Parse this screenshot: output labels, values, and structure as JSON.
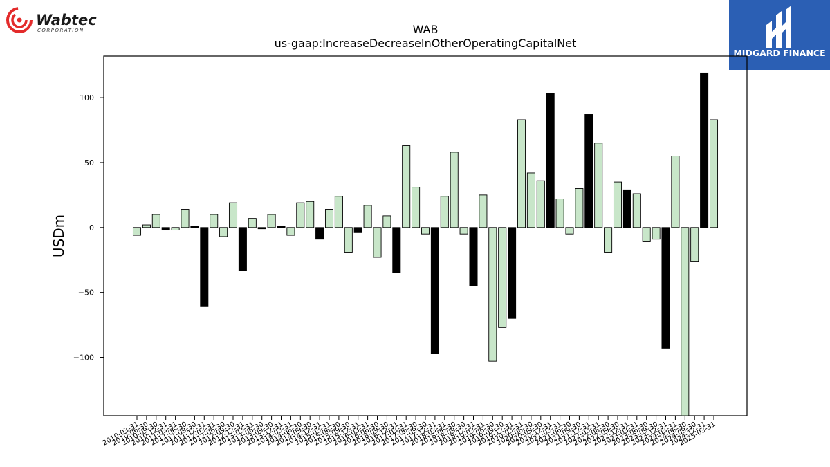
{
  "logos": {
    "company": {
      "name": "Wabtec",
      "sub": "CORPORATION",
      "accent": "#e32b2b"
    },
    "publisher": {
      "name": "MIDGARD FINANCE",
      "color": "#2b5fb4"
    }
  },
  "chart_data": {
    "type": "bar",
    "title": "WAB",
    "subtitle": "us-gaap:IncreaseDecreaseInOtherOperatingCapitalNet",
    "ylabel": "USDm",
    "xlabel": "",
    "ylim": [
      -145,
      132
    ],
    "yticks": [
      -100,
      -50,
      0,
      50,
      100
    ],
    "grid": false,
    "colors": {
      "default": "#c8e6c9",
      "highlight": "#000000",
      "edge": "#000000"
    },
    "categories": [
      "2010-03-31",
      "2010-06-30",
      "2010-09-30",
      "2010-12-31",
      "2011-03-31",
      "2011-06-30",
      "2011-09-30",
      "2011-12-31",
      "2012-03-31",
      "2012-06-30",
      "2012-09-30",
      "2012-12-31",
      "2013-03-31",
      "2013-06-30",
      "2013-09-30",
      "2013-12-31",
      "2014-03-31",
      "2014-06-30",
      "2014-09-30",
      "2014-12-31",
      "2015-03-31",
      "2015-06-30",
      "2015-09-30",
      "2015-12-31",
      "2016-03-31",
      "2016-06-30",
      "2016-09-30",
      "2016-12-31",
      "2017-03-31",
      "2017-06-30",
      "2017-09-30",
      "2017-12-31",
      "2018-03-31",
      "2018-06-30",
      "2018-09-30",
      "2018-12-31",
      "2019-03-31",
      "2019-06-30",
      "2019-09-30",
      "2019-12-31",
      "2020-03-31",
      "2020-06-30",
      "2020-09-30",
      "2020-12-31",
      "2021-03-31",
      "2021-06-30",
      "2021-09-30",
      "2021-12-31",
      "2022-03-31",
      "2022-06-30",
      "2022-09-30",
      "2022-12-31",
      "2023-03-31",
      "2023-06-30",
      "2023-09-30",
      "2023-12-31",
      "2024-03-31",
      "2024-06-30",
      "2024-09-30",
      "2024-12-31",
      "2025-03-31"
    ],
    "values": [
      -6,
      2,
      10,
      -2,
      -2,
      14,
      1,
      -61,
      10,
      -7,
      19,
      -33,
      7,
      -1,
      10,
      1,
      -6,
      19,
      20,
      -9,
      14,
      24,
      -19,
      -4,
      17,
      -23,
      9,
      -35,
      63,
      31,
      -5,
      -97,
      24,
      58,
      -5,
      -45,
      25,
      -103,
      -77,
      -70,
      83,
      42,
      36,
      103,
      22,
      -5,
      30,
      87,
      65,
      -19,
      35,
      29,
      26,
      -11,
      -9,
      -93,
      55,
      -145,
      -26,
      119,
      83
    ],
    "highlight": [
      false,
      false,
      false,
      true,
      false,
      false,
      true,
      true,
      false,
      false,
      false,
      true,
      false,
      true,
      false,
      true,
      false,
      false,
      false,
      true,
      false,
      false,
      false,
      true,
      false,
      false,
      false,
      true,
      false,
      false,
      false,
      true,
      false,
      false,
      false,
      true,
      false,
      false,
      false,
      true,
      false,
      false,
      false,
      true,
      false,
      false,
      false,
      true,
      false,
      false,
      false,
      true,
      false,
      false,
      false,
      true,
      false,
      false,
      false,
      true,
      false
    ]
  }
}
